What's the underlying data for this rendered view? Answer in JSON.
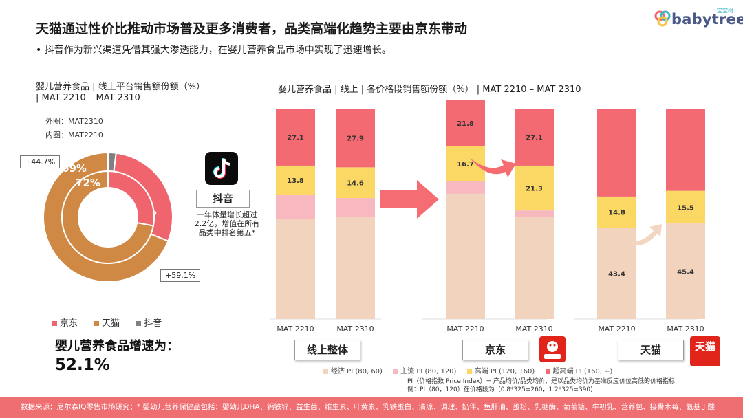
{
  "header": {
    "title": "天猫通过性价比推动市场普及更多消费者，品类高端化趋势主要由京东带动",
    "bullet": "• 抖音作为新兴渠道凭借其强大渗透能力，在婴儿营养食品市场中实现了迅速增长。",
    "logo_text": "babytree",
    "logo_tag": "宝宝树"
  },
  "left": {
    "subtitle": "婴儿营养食品 | 线上平台销售额份额（%） | MAT 2210 – MAT 2310",
    "outer_ring_note": "外圈：MAT2310",
    "inner_ring_note": "内圈：MAT2210",
    "callout_tmall": "+44.7%",
    "callout_jd": "+59.1%",
    "tiktok_label": "抖音",
    "tiktok_note": "一年体量增长超过2.2亿，增值在所有品类中排名第五*",
    "growth_label": "婴儿营养食品增速为：",
    "growth_value": "52.1%"
  },
  "right": {
    "subtitle": "婴儿营养食品 | 线上 | 各价格段销售额份额（%） | MAT 2210 – MAT 2310",
    "group_labels": [
      "线上整体",
      "京东",
      "天猫"
    ],
    "legend": [
      "经济 PI (80, 60)",
      "主流 PI (80, 120)",
      "高端 PI (120, 160)",
      "超高端 PI (160, +)"
    ],
    "pi_note_1": "PI（价格指数 Price Index）= 产品均价/品类均价，是以品类均价为基准反应价位高低的价格指标",
    "pi_note_2": "例：PI（80，120）在价格段为（0.8*325=260，1.2*325=390)",
    "tmall_logo_text": "天猫"
  },
  "footer": {
    "text": "数据来源：尼尔森IQ零售市场研究；* 婴幼儿营养保健品包括：婴幼儿DHA、钙铁锌、益生菌、维生素、叶黄素、乳铁蛋白、清凉、调理、奶伴、鱼肝油、蛋粉、乳糖酶、葡萄糖、牛初乳、营养包、接骨木莓、氨基丁酸"
  },
  "colors": {
    "jd": "#f0656d",
    "tmall": "#d08845",
    "douyin": "#808080",
    "economy": "#f2d3bd",
    "mainstream": "#f7b8bf",
    "premium": "#fbd764",
    "super_premium": "#f46a72",
    "arrow": "#f56d73"
  },
  "chart_data": [
    {
      "type": "pie",
      "title": "婴儿营养食品 | 线上平台销售额份额（%） | MAT 2210 – MAT 2310",
      "categories": [
        "京东",
        "天猫",
        "抖音"
      ],
      "series": [
        {
          "name": "MAT2310",
          "values": [
            29,
            69,
            2
          ]
        },
        {
          "name": "MAT2210",
          "values": [
            28,
            72,
            0
          ]
        }
      ],
      "annotations": [
        "+44.7%",
        "+59.1%"
      ],
      "legend_position": "bottom"
    },
    {
      "type": "bar",
      "stacked": true,
      "title": "婴儿营养食品 | 线上 | 各价格段销售额份额（%） | MAT 2210 – MAT 2310",
      "groups": [
        "线上整体",
        "京东",
        "天猫"
      ],
      "categories": [
        "MAT 2210",
        "MAT 2310"
      ],
      "series": [
        {
          "name": "经济 PI (80, 60)",
          "values": [
            [
              47.5,
              48.5
            ],
            [
              59.5,
              48.5
            ],
            [
              43.4,
              45.4
            ]
          ]
        },
        {
          "name": "主流 PI (80, 120)",
          "values": [
            [
              11.6,
              9.0
            ],
            [
              6.0,
              3.1
            ],
            [
              0,
              0
            ]
          ]
        },
        {
          "name": "高端 PI (120, 160)",
          "values": [
            [
              13.8,
              14.6
            ],
            [
              16.7,
              21.3
            ],
            [
              14.8,
              15.5
            ]
          ]
        },
        {
          "name": "超高端 PI (160, +)",
          "values": [
            [
              27.1,
              27.9
            ],
            [
              21.8,
              27.1
            ],
            [
              41.8,
              39.1
            ]
          ]
        }
      ],
      "data_labels": {
        "线上整体": {
          "超高端": [
            "27.1",
            "27.9"
          ],
          "高端": [
            "13.8",
            "14.6"
          ]
        },
        "京东": {
          "超高端": [
            "21.8",
            "27.1"
          ],
          "高端": [
            "16.7",
            "21.3"
          ]
        },
        "天猫": {
          "高端": [
            "14.8",
            "15.5"
          ],
          "经济": [
            "43.4",
            "45.4"
          ]
        }
      },
      "ylim": [
        0,
        100
      ],
      "legend_position": "bottom"
    }
  ]
}
